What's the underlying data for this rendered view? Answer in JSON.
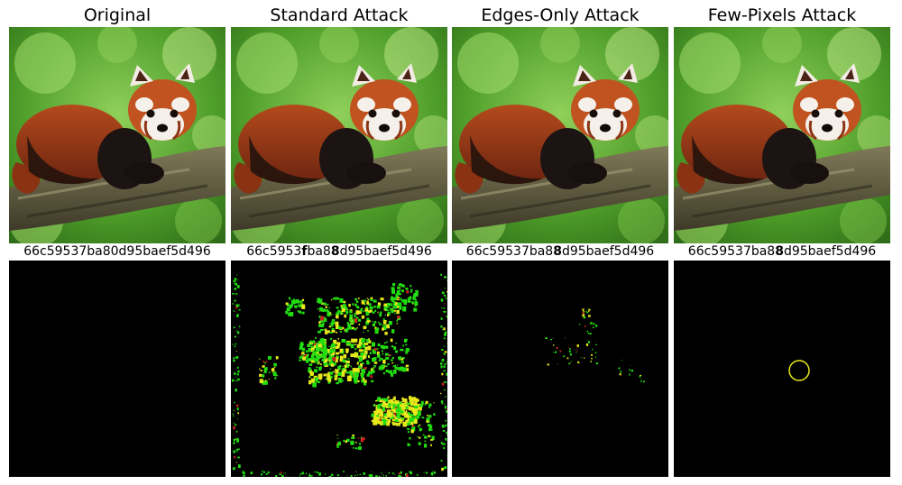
{
  "panels": [
    {
      "title": "Original",
      "hash_parts": [
        {
          "t": "66c59537ba80d95baef5d496",
          "b": false
        }
      ],
      "diff": "none"
    },
    {
      "title": "Standard Attack",
      "hash_parts": [
        {
          "t": "66c5953",
          "b": false
        },
        {
          "t": "f",
          "b": true
        },
        {
          "t": "ba8",
          "b": false
        },
        {
          "t": "8",
          "b": true
        },
        {
          "t": "d95baef5d496",
          "b": false
        }
      ],
      "diff": "standard"
    },
    {
      "title": "Edges-Only Attack",
      "hash_parts": [
        {
          "t": "66c59537ba8",
          "b": false
        },
        {
          "t": "8",
          "b": true
        },
        {
          "t": "d95baef5d496",
          "b": false
        }
      ],
      "diff": "edges"
    },
    {
      "title": "Few-Pixels Attack",
      "hash_parts": [
        {
          "t": "66c59537ba8",
          "b": false
        },
        {
          "t": "8",
          "b": true
        },
        {
          "t": "d95baef5d496",
          "b": false
        }
      ],
      "diff": "few"
    }
  ],
  "colors": {
    "diff_background": "#000000",
    "perturb_green": "#22dd11",
    "perturb_yellow": "#e8e81a",
    "perturb_red": "#cc2222",
    "circle": "#e8e81a"
  },
  "image_subject": "red-panda-on-branch"
}
